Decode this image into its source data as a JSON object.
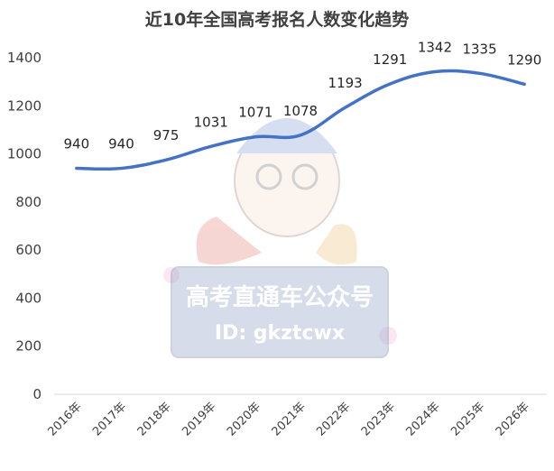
{
  "chart_data": {
    "type": "line",
    "title": "近10年全国高考报名人数变化趋势",
    "xlabel": "",
    "ylabel": "",
    "categories": [
      "2016年",
      "2017年",
      "2018年",
      "2019年",
      "2020年",
      "2021年",
      "2022年",
      "2023年",
      "2024年",
      "2025年",
      "2026年"
    ],
    "series": [
      {
        "values": [
          940,
          940,
          975,
          1031,
          1071,
          1078,
          1193,
          1291,
          1342,
          1335,
          1290
        ]
      }
    ],
    "data_labels": [
      "940",
      "940",
      "975",
      "1031",
      "1071",
      "1078",
      "1193",
      "1291",
      "1342",
      "1335",
      "1290"
    ],
    "ylim": [
      0,
      1400
    ],
    "yticks": [
      "0",
      "200",
      "400",
      "600",
      "800",
      "1000",
      "1200",
      "1400"
    ],
    "grid": false,
    "legend": "none",
    "line_color": "#4472C4"
  },
  "watermark": {
    "text": "高考直通车公众号",
    "id_text": "ID: gkztcwx"
  }
}
